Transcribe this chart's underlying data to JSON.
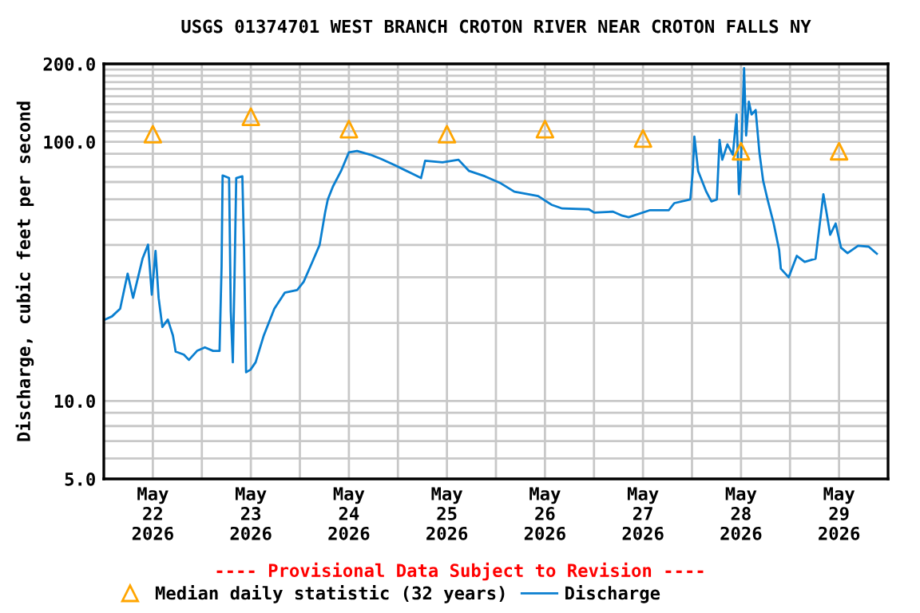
{
  "chart_data": {
    "type": "line",
    "title": "USGS 01374701 WEST BRANCH CROTON RIVER NEAR CROTON FALLS NY",
    "ylabel": "Discharge, cubic feet per second",
    "annotations": [
      "---- Provisional Data Subject to Revision ----"
    ],
    "log": true,
    "grid": true,
    "legend": "bottom",
    "xlim": [
      "2026-05-22T00:00",
      "2026-05-30T00:00"
    ],
    "xticks": [
      {
        "value": "2026-05-22T12:00",
        "label": "May\n22\n2026"
      },
      {
        "value": "2026-05-23T12:00",
        "label": "May\n23\n2026"
      },
      {
        "value": "2026-05-24T12:00",
        "label": "May\n24\n2026"
      },
      {
        "value": "2026-05-25T12:00",
        "label": "May\n25\n2026"
      },
      {
        "value": "2026-05-26T12:00",
        "label": "May\n26\n2026"
      },
      {
        "value": "2026-05-27T12:00",
        "label": "May\n27\n2026"
      },
      {
        "value": "2026-05-28T12:00",
        "label": "May\n28\n2026"
      },
      {
        "value": "2026-05-29T12:00",
        "label": "May\n29\n2026"
      },
      {
        "value": "2026-05-23T00:00",
        "label": null
      },
      {
        "value": "2026-05-24T00:00",
        "label": null
      },
      {
        "value": "2026-05-25T00:00",
        "label": null
      },
      {
        "value": "2026-05-26T00:00",
        "label": null
      },
      {
        "value": "2026-05-27T00:00",
        "label": null
      },
      {
        "value": "2026-05-28T00:00",
        "label": null
      },
      {
        "value": "2026-05-29T00:00",
        "label": null
      }
    ],
    "ylim": [
      5,
      200
    ],
    "yticks": [
      {
        "value": 5,
        "label": "5.0"
      },
      {
        "value": 10,
        "label": "10.0"
      },
      {
        "value": 100,
        "label": "100.0"
      },
      {
        "value": 200,
        "label": "200.0"
      },
      {
        "value": 6,
        "label": null
      },
      {
        "value": 7,
        "label": null
      },
      {
        "value": 8,
        "label": null
      },
      {
        "value": 9,
        "label": null
      },
      {
        "value": 20,
        "label": null
      },
      {
        "value": 30,
        "label": null
      },
      {
        "value": 40,
        "label": null
      },
      {
        "value": 50,
        "label": null
      },
      {
        "value": 60,
        "label": null
      },
      {
        "value": 70,
        "label": null
      },
      {
        "value": 80,
        "label": null
      },
      {
        "value": 90,
        "label": null
      },
      {
        "value": 110,
        "label": null
      },
      {
        "value": 120,
        "label": null
      },
      {
        "value": 130,
        "label": null
      },
      {
        "value": 140,
        "label": null
      },
      {
        "value": 150,
        "label": null
      },
      {
        "value": 160,
        "label": null
      },
      {
        "value": 170,
        "label": null
      },
      {
        "value": 180,
        "label": null
      },
      {
        "value": 190,
        "label": null
      }
    ],
    "series": [
      {
        "name": "Median daily statistic (32 years)",
        "type": "scatter",
        "marker": "triangle",
        "color": "#ffa500",
        "x": [
          "2026-05-22T12:00",
          "2026-05-23T12:00",
          "2026-05-24T12:00",
          "2026-05-25T12:00",
          "2026-05-26T12:00",
          "2026-05-27T12:00",
          "2026-05-28T12:00",
          "2026-05-29T12:00"
        ],
        "values": [
          107,
          125,
          112,
          107,
          112,
          103,
          92,
          92
        ]
      },
      {
        "name": "Discharge",
        "color": "#0a7fd0",
        "x": [
          "2026-05-22T00:15",
          "2026-05-22T02:00",
          "2026-05-22T04:00",
          "2026-05-22T05:50",
          "2026-05-22T07:10",
          "2026-05-22T09:30",
          "2026-05-22T10:50",
          "2026-05-22T11:45",
          "2026-05-22T12:40",
          "2026-05-22T13:25",
          "2026-05-22T14:20",
          "2026-05-22T15:40",
          "2026-05-22T16:55",
          "2026-05-22T17:35",
          "2026-05-22T19:35",
          "2026-05-22T20:50",
          "2026-05-22T22:50",
          "2026-05-23T00:45",
          "2026-05-23T02:45",
          "2026-05-23T04:20",
          "2026-05-23T04:50",
          "2026-05-23T05:05",
          "2026-05-23T06:40",
          "2026-05-23T07:05",
          "2026-05-23T07:35",
          "2026-05-23T08:00",
          "2026-05-23T08:25",
          "2026-05-23T09:55",
          "2026-05-23T10:20",
          "2026-05-23T10:50",
          "2026-05-23T11:55",
          "2026-05-23T13:10",
          "2026-05-23T15:10",
          "2026-05-23T17:45",
          "2026-05-23T20:20",
          "2026-05-23T23:20",
          "2026-05-24T00:55",
          "2026-05-24T02:55",
          "2026-05-24T04:50",
          "2026-05-24T06:10",
          "2026-05-24T06:50",
          "2026-05-24T08:05",
          "2026-05-24T10:05",
          "2026-05-24T12:00",
          "2026-05-24T14:00",
          "2026-05-24T17:15",
          "2026-05-24T19:50",
          "2026-05-24T23:10",
          "2026-05-25T03:05",
          "2026-05-25T05:40",
          "2026-05-25T06:40",
          "2026-05-25T10:55",
          "2026-05-25T14:50",
          "2026-05-25T17:25",
          "2026-05-25T21:20",
          "2026-05-26T01:15",
          "2026-05-26T04:30",
          "2026-05-26T10:20",
          "2026-05-26T13:35",
          "2026-05-26T16:15",
          "2026-05-26T22:45",
          "2026-05-27T00:05",
          "2026-05-27T04:35",
          "2026-05-27T06:55",
          "2026-05-27T08:30",
          "2026-05-27T13:45",
          "2026-05-27T18:20",
          "2026-05-27T19:40",
          "2026-05-27T23:35",
          "2026-05-28T00:10",
          "2026-05-28T00:35",
          "2026-05-28T01:30",
          "2026-05-28T03:30",
          "2026-05-28T04:45",
          "2026-05-28T06:05",
          "2026-05-28T06:45",
          "2026-05-28T07:25",
          "2026-05-28T08:40",
          "2026-05-28T10:00",
          "2026-05-28T10:55",
          "2026-05-28T11:30",
          "2026-05-28T11:55",
          "2026-05-28T12:45",
          "2026-05-28T13:15",
          "2026-05-28T13:55",
          "2026-05-28T14:35",
          "2026-05-28T15:35",
          "2026-05-28T16:30",
          "2026-05-28T17:25",
          "2026-05-28T18:30",
          "2026-05-28T20:00",
          "2026-05-28T21:20",
          "2026-05-28T21:45",
          "2026-05-28T23:40",
          "2026-05-29T01:40",
          "2026-05-29T03:35",
          "2026-05-29T06:15",
          "2026-05-29T08:10",
          "2026-05-29T08:50",
          "2026-05-29T09:50",
          "2026-05-29T11:10",
          "2026-05-29T12:30",
          "2026-05-29T14:05",
          "2026-05-29T16:40",
          "2026-05-29T19:15",
          "2026-05-29T21:15"
        ],
        "values": [
          20.6,
          21.2,
          22.7,
          31.0,
          25.0,
          35.5,
          40.1,
          25.7,
          37.9,
          25.0,
          19.3,
          20.6,
          17.9,
          15.5,
          15.1,
          14.4,
          15.6,
          16.1,
          15.6,
          15.6,
          33.1,
          74.2,
          72.5,
          22.2,
          14.1,
          30.0,
          72.5,
          73.6,
          38.3,
          12.9,
          13.2,
          14.1,
          17.9,
          22.7,
          26.2,
          26.8,
          28.8,
          34,
          40,
          53.3,
          59.9,
          67.2,
          77.2,
          91.1,
          92.2,
          89.2,
          86.0,
          81.4,
          75.9,
          72.5,
          84.6,
          83.3,
          85.3,
          77.2,
          73.6,
          69.1,
          64.2,
          61.8,
          57.2,
          55.3,
          54.9,
          53.3,
          53.8,
          51.9,
          51.2,
          54.5,
          54.5,
          58.0,
          59.9,
          75.9,
          104.7,
          77.2,
          64.2,
          58.9,
          59.9,
          101.7,
          85.3,
          97.8,
          89.2,
          127.5,
          62.8,
          77.2,
          192.5,
          105.8,
          143.0,
          127.5,
          132.7,
          91.1,
          70.8,
          59.9,
          48.4,
          38.3,
          32.4,
          30.0,
          36.3,
          34.4,
          35.4,
          62.8,
          54.5,
          43.8,
          48.4,
          39.0,
          37.2,
          39.7,
          39.4,
          37.0
        ]
      }
    ]
  }
}
